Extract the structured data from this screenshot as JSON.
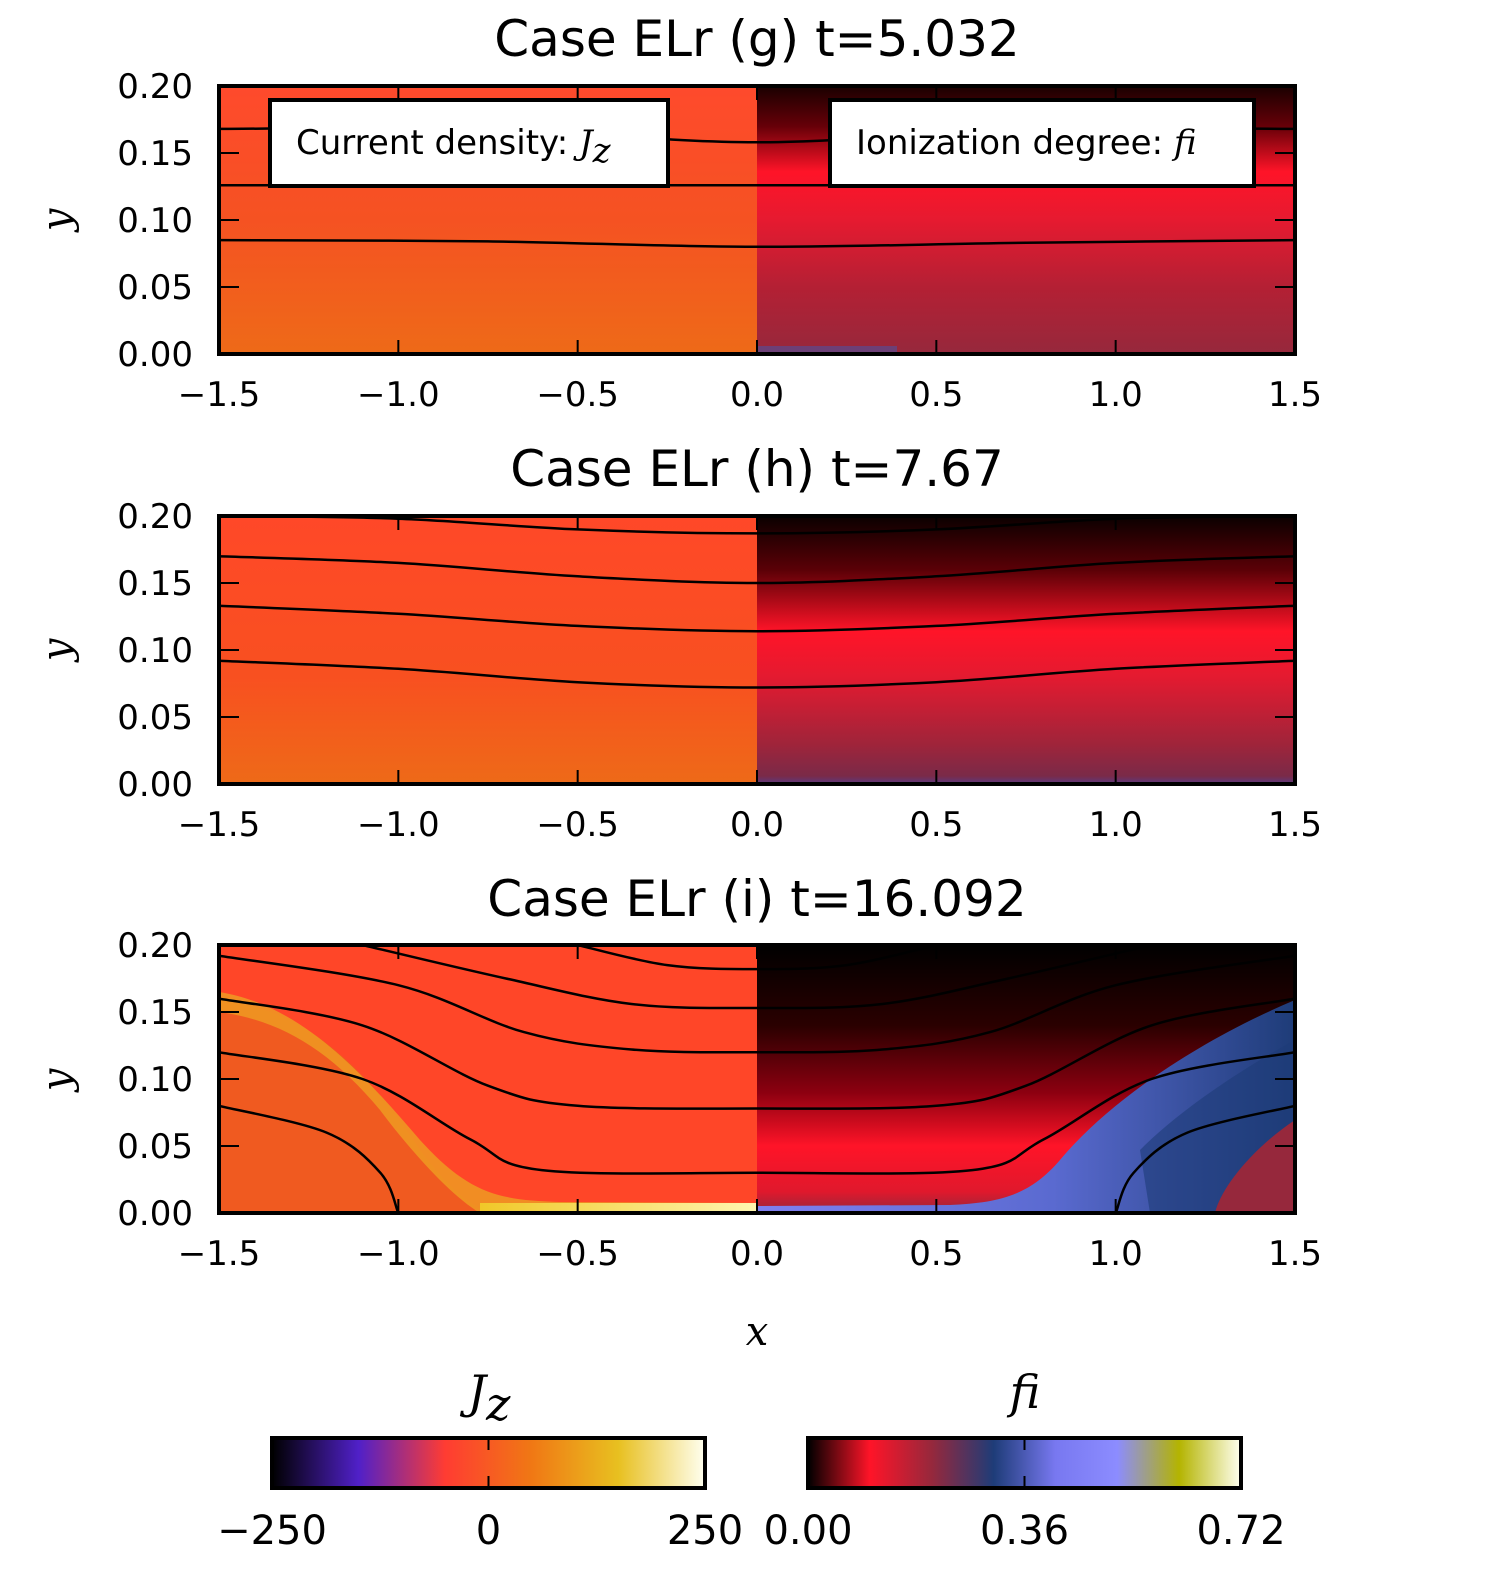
{
  "chart_data": {
    "type": "heatmap",
    "colors": {
      "jz_zero": "#ff4628",
      "jz_positive": "#f0641e",
      "jz_sheet": "#e8c020",
      "fi_low_dark": "#000000",
      "fi_mid_red": "#ff1428",
      "fi_high_crimson": "#96283c",
      "fi_blue": "#1e3c78",
      "fi_violet": "#7878f0",
      "contour": "#000000"
    },
    "panels": [
      {
        "title": "Case ELr (g) t=5.032",
        "xlim": [
          -1.5,
          1.5
        ],
        "ylim": [
          0,
          0.2
        ],
        "xticks": [
          -1.5,
          -1.0,
          -0.5,
          0.0,
          0.5,
          1.0,
          1.5
        ],
        "xtick_labels": [
          "−1.5",
          "−1.0",
          "−0.5",
          "0.0",
          "0.5",
          "1.0",
          "1.5"
        ],
        "yticks": [
          0,
          0.05,
          0.1,
          0.15,
          0.2
        ],
        "ytick_labels": [
          "0.00",
          "0.05",
          "0.10",
          "0.15",
          "0.20"
        ],
        "ylabel": "y",
        "legend_left": {
          "text": "Current density: ",
          "symbol": "J",
          "sub": "z"
        },
        "legend_right": {
          "text": "Ionization degree: ",
          "symbol": "f",
          "sub": "i"
        },
        "field_lines": [
          [
            [
              -1.5,
              0.168
            ],
            [
              -0.75,
              0.168
            ],
            [
              0,
              0.158
            ],
            [
              0.75,
              0.168
            ],
            [
              1.5,
              0.168
            ]
          ],
          [
            [
              -1.5,
              0.126
            ],
            [
              -0.75,
              0.126
            ],
            [
              0,
              0.126
            ],
            [
              0.75,
              0.126
            ],
            [
              1.5,
              0.126
            ]
          ],
          [
            [
              -1.5,
              0.085
            ],
            [
              -0.75,
              0.084
            ],
            [
              0,
              0.08
            ],
            [
              0.75,
              0.083
            ],
            [
              1.5,
              0.085
            ]
          ]
        ]
      },
      {
        "title": "Case ELr (h) t=7.67",
        "xlim": [
          -1.5,
          1.5
        ],
        "ylim": [
          0,
          0.2
        ],
        "xticks": [
          -1.5,
          -1.0,
          -0.5,
          0.0,
          0.5,
          1.0,
          1.5
        ],
        "xtick_labels": [
          "−1.5",
          "−1.0",
          "−0.5",
          "0.0",
          "0.5",
          "1.0",
          "1.5"
        ],
        "yticks": [
          0,
          0.05,
          0.1,
          0.15,
          0.2
        ],
        "ytick_labels": [
          "0.00",
          "0.05",
          "0.10",
          "0.15",
          "0.20"
        ],
        "ylabel": "y",
        "field_lines": [
          [
            [
              -1.5,
              0.2
            ],
            [
              -1.0,
              0.198
            ],
            [
              -0.5,
              0.19
            ],
            [
              0,
              0.187
            ],
            [
              0.5,
              0.19
            ],
            [
              1.0,
              0.198
            ],
            [
              1.5,
              0.2
            ]
          ],
          [
            [
              -1.5,
              0.17
            ],
            [
              -1.0,
              0.165
            ],
            [
              -0.5,
              0.155
            ],
            [
              0,
              0.15
            ],
            [
              0.5,
              0.155
            ],
            [
              1.0,
              0.165
            ],
            [
              1.5,
              0.17
            ]
          ],
          [
            [
              -1.5,
              0.133
            ],
            [
              -1.0,
              0.127
            ],
            [
              -0.5,
              0.118
            ],
            [
              0,
              0.114
            ],
            [
              0.5,
              0.118
            ],
            [
              1.0,
              0.127
            ],
            [
              1.5,
              0.133
            ]
          ],
          [
            [
              -1.5,
              0.092
            ],
            [
              -1.0,
              0.086
            ],
            [
              -0.5,
              0.076
            ],
            [
              0,
              0.072
            ],
            [
              0.5,
              0.076
            ],
            [
              1.0,
              0.086
            ],
            [
              1.5,
              0.092
            ]
          ]
        ]
      },
      {
        "title": "Case ELr (i) t=16.092",
        "xlim": [
          -1.5,
          1.5
        ],
        "ylim": [
          0,
          0.2
        ],
        "xticks": [
          -1.5,
          -1.0,
          -0.5,
          0.0,
          0.5,
          1.0,
          1.5
        ],
        "xtick_labels": [
          "−1.5",
          "−1.0",
          "−0.5",
          "0.0",
          "0.5",
          "1.0",
          "1.5"
        ],
        "yticks": [
          0,
          0.05,
          0.1,
          0.15,
          0.2
        ],
        "ytick_labels": [
          "0.00",
          "0.05",
          "0.10",
          "0.15",
          "0.20"
        ],
        "ylabel": "y",
        "xlabel": "x",
        "field_lines": [
          [
            [
              -0.5,
              0.2
            ],
            [
              -0.25,
              0.185
            ],
            [
              0,
              0.182
            ],
            [
              0.25,
              0.185
            ],
            [
              0.5,
              0.2
            ]
          ],
          [
            [
              -1.1,
              0.2
            ],
            [
              -0.7,
              0.175
            ],
            [
              -0.35,
              0.156
            ],
            [
              0,
              0.153
            ],
            [
              0.35,
              0.156
            ],
            [
              0.7,
              0.175
            ],
            [
              1.1,
              0.2
            ]
          ],
          [
            [
              -1.5,
              0.192
            ],
            [
              -1.0,
              0.17
            ],
            [
              -0.65,
              0.135
            ],
            [
              -0.35,
              0.122
            ],
            [
              0,
              0.12
            ],
            [
              0.35,
              0.122
            ],
            [
              0.65,
              0.135
            ],
            [
              1.0,
              0.17
            ],
            [
              1.5,
              0.192
            ]
          ],
          [
            [
              -1.5,
              0.16
            ],
            [
              -1.1,
              0.14
            ],
            [
              -0.75,
              0.095
            ],
            [
              -0.5,
              0.08
            ],
            [
              0,
              0.078
            ],
            [
              0.5,
              0.08
            ],
            [
              0.75,
              0.095
            ],
            [
              1.1,
              0.14
            ],
            [
              1.5,
              0.16
            ]
          ],
          [
            [
              -1.5,
              0.12
            ],
            [
              -1.1,
              0.1
            ],
            [
              -0.8,
              0.055
            ],
            [
              -0.6,
              0.032
            ],
            [
              0,
              0.03
            ],
            [
              0.6,
              0.032
            ],
            [
              0.8,
              0.055
            ],
            [
              1.1,
              0.1
            ],
            [
              1.5,
              0.12
            ]
          ],
          [
            [
              -1.5,
              0.08
            ],
            [
              -1.2,
              0.06
            ],
            [
              -1.05,
              0.03
            ],
            [
              -1.0,
              0.0
            ]
          ],
          [
            [
              1.0,
              0.0
            ],
            [
              1.05,
              0.03
            ],
            [
              1.2,
              0.06
            ],
            [
              1.5,
              0.08
            ]
          ]
        ]
      }
    ],
    "colorbars": [
      {
        "label": "J",
        "label_sub": "z",
        "min": -250,
        "max": 250,
        "ticks": [
          -250,
          0,
          250
        ],
        "tick_labels": [
          "−250",
          "0",
          "250"
        ],
        "stops": [
          "#000000",
          "#5020c8",
          "#ff3c32",
          "#f07814",
          "#e8c020",
          "#fffff0"
        ]
      },
      {
        "label": "f",
        "label_sub": "i",
        "min": 0.0,
        "max": 0.72,
        "ticks": [
          0.0,
          0.36,
          0.72
        ],
        "tick_labels": [
          "0.00",
          "0.36",
          "0.72"
        ],
        "stops": [
          "#000000",
          "#ff1428",
          "#96283c",
          "#1e3c78",
          "#7878f0",
          "#8c8cff",
          "#b4b400",
          "#fffff0"
        ]
      }
    ]
  }
}
